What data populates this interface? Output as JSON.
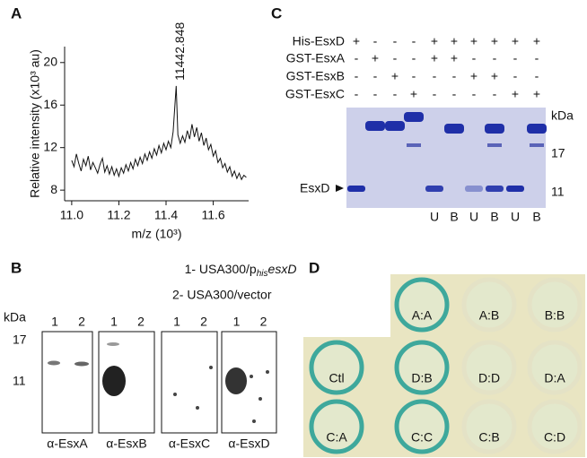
{
  "panel_labels": [
    "A",
    "B",
    "C",
    "D"
  ],
  "chart_data": {
    "type": "line",
    "color": "#111111",
    "x_label": "m/z (10³)",
    "y_label": "Relative intensity (x10³ au)",
    "peak_label": "11442.848",
    "xlim": [
      10.97,
      11.75
    ],
    "ylim": [
      7.0,
      21.5
    ],
    "xticks": [
      {
        "value": 11,
        "label": "11.0"
      },
      11.2,
      11.4,
      11.6
    ],
    "yticks": [
      8,
      12,
      16,
      20
    ],
    "x": [
      11.0,
      11.01,
      11.02,
      11.03,
      11.04,
      11.05,
      11.06,
      11.07,
      11.08,
      11.09,
      11.1,
      11.11,
      11.12,
      11.13,
      11.14,
      11.15,
      11.16,
      11.17,
      11.18,
      11.19,
      11.2,
      11.21,
      11.22,
      11.23,
      11.24,
      11.25,
      11.26,
      11.27,
      11.28,
      11.29,
      11.3,
      11.31,
      11.32,
      11.33,
      11.34,
      11.35,
      11.36,
      11.37,
      11.38,
      11.39,
      11.4,
      11.41,
      11.42,
      11.43,
      11.443,
      11.45,
      11.46,
      11.47,
      11.48,
      11.49,
      11.5,
      11.51,
      11.52,
      11.53,
      11.54,
      11.55,
      11.56,
      11.57,
      11.58,
      11.59,
      11.6,
      11.61,
      11.62,
      11.63,
      11.64,
      11.65,
      11.66,
      11.67,
      11.68,
      11.69,
      11.7,
      11.71,
      11.72,
      11.73,
      11.74
    ],
    "values": [
      10.8,
      10.2,
      11.4,
      10.5,
      9.8,
      10.9,
      10.3,
      11.2,
      9.9,
      10.6,
      10.1,
      9.6,
      10.4,
      11.0,
      9.7,
      10.3,
      9.5,
      10.2,
      9.4,
      10.0,
      9.3,
      10.1,
      9.6,
      10.4,
      9.8,
      10.6,
      10.0,
      10.9,
      10.3,
      11.1,
      10.5,
      11.4,
      10.8,
      11.6,
      11.0,
      11.9,
      11.3,
      12.2,
      11.5,
      12.4,
      11.8,
      12.6,
      12.0,
      13.5,
      17.8,
      13.2,
      12.4,
      13.1,
      12.5,
      13.6,
      12.8,
      14.2,
      13.0,
      13.9,
      12.6,
      13.4,
      12.2,
      12.9,
      11.8,
      12.3,
      11.2,
      11.7,
      10.6,
      11.0,
      10.1,
      10.5,
      9.7,
      10.2,
      9.3,
      9.8,
      9.1,
      9.6,
      9.0,
      9.4,
      9.2
    ]
  },
  "western": {
    "legend": [
      {
        "prefix": "1- USA300/p",
        "sub": "his",
        "suffix": "esxD"
      },
      {
        "prefix": "2- USA300/vector"
      }
    ],
    "unit": "kDa",
    "markers": [
      "17",
      "11"
    ],
    "lanes": [
      "1",
      "2"
    ],
    "blots": [
      "α-EsxA",
      "α-EsxB",
      "α-EsxC",
      "α-EsxD"
    ]
  },
  "gel": {
    "rows": [
      {
        "name": "His-EsxD",
        "cells": [
          "+",
          "-",
          "-",
          "-",
          "+",
          "+",
          "+",
          "+",
          "+",
          "+"
        ]
      },
      {
        "name": "GST-EsxA",
        "cells": [
          "-",
          "+",
          "-",
          "-",
          "+",
          "+",
          "-",
          "-",
          "-",
          "-"
        ]
      },
      {
        "name": "GST-EsxB",
        "cells": [
          "-",
          "-",
          "+",
          "-",
          "-",
          "-",
          "+",
          "+",
          "-",
          "-"
        ]
      },
      {
        "name": "GST-EsxC",
        "cells": [
          "-",
          "-",
          "-",
          "+",
          "-",
          "-",
          "-",
          "-",
          "+",
          "+"
        ]
      }
    ],
    "unit": "kDa",
    "markers": [
      "17",
      "11"
    ],
    "band_label": "EsxD",
    "fractions": [
      "U",
      "B",
      "U",
      "B",
      "U",
      "B"
    ]
  },
  "plate": {
    "rows": [
      [
        null,
        {
          "label": "A:A",
          "color": "#3ea89c"
        },
        {
          "label": "A:B",
          "color": "#e4e2c6"
        },
        {
          "label": "B:B",
          "color": "#e4e2c6"
        }
      ],
      [
        {
          "label": "Ctl",
          "color": "#3ea89c"
        },
        {
          "label": "D:B",
          "color": "#3ea89c"
        },
        {
          "label": "D:D",
          "color": "#e4e2c6"
        },
        {
          "label": "D:A",
          "color": "#e4e2c6"
        }
      ],
      [
        {
          "label": "C:A",
          "color": "#3ea89c"
        },
        {
          "label": "C:C",
          "color": "#3ea89c"
        },
        {
          "label": "C:B",
          "color": "#e4e2c6"
        },
        {
          "label": "C:D",
          "color": "#e4e2c6"
        }
      ]
    ]
  }
}
